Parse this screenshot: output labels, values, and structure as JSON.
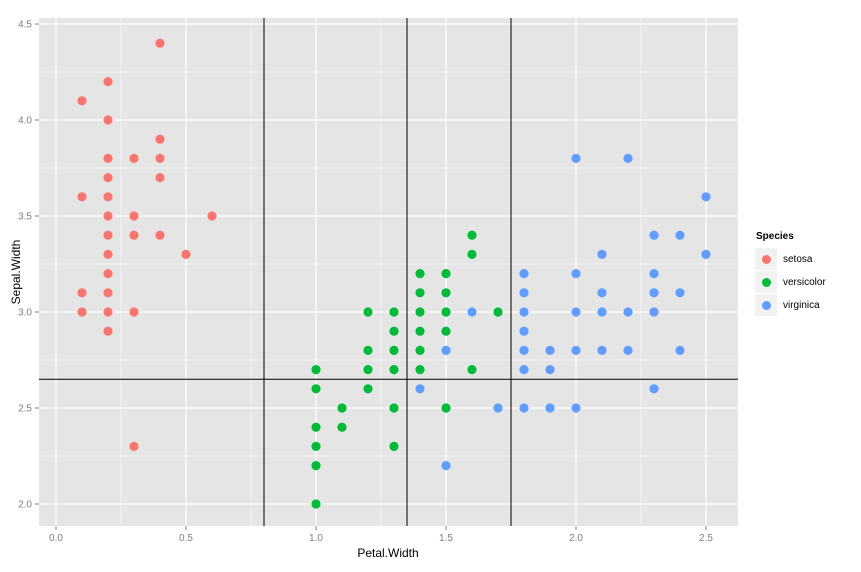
{
  "chart_data": {
    "type": "scatter",
    "title": "",
    "xlabel": "Petal.Width",
    "ylabel": "Sepal.Width",
    "xlim": [
      -0.065,
      2.62
    ],
    "ylim": [
      1.88,
      4.62
    ],
    "x_ticks": [
      0.0,
      0.5,
      1.0,
      1.5,
      2.0,
      2.5
    ],
    "x_tick_labels": [
      "0.0",
      "0.5",
      "1.0",
      "1.5",
      "2.0",
      "2.5"
    ],
    "y_ticks": [
      2.0,
      2.5,
      3.0,
      3.5,
      4.0,
      4.5
    ],
    "y_tick_labels": [
      "2.0",
      "2.5",
      "3.0",
      "3.5",
      "4.0",
      "4.5"
    ],
    "grid": true,
    "legend": {
      "title": "Species",
      "position": "right",
      "entries": [
        "setosa",
        "versicolor",
        "virginica"
      ]
    },
    "reference_lines": {
      "vertical": [
        0.8,
        1.35,
        1.75
      ],
      "horizontal": [
        2.65
      ]
    },
    "series": [
      {
        "name": "setosa",
        "color": "#F8766D",
        "points": [
          [
            0.4,
            4.4
          ],
          [
            0.2,
            4.2
          ],
          [
            0.1,
            4.1
          ],
          [
            0.2,
            4.0
          ],
          [
            0.4,
            3.9
          ],
          [
            0.2,
            3.8
          ],
          [
            0.3,
            3.8
          ],
          [
            0.4,
            3.8
          ],
          [
            0.2,
            3.7
          ],
          [
            0.4,
            3.7
          ],
          [
            0.1,
            3.6
          ],
          [
            0.2,
            3.6
          ],
          [
            0.2,
            3.5
          ],
          [
            0.3,
            3.5
          ],
          [
            0.6,
            3.5
          ],
          [
            0.2,
            3.4
          ],
          [
            0.3,
            3.4
          ],
          [
            0.4,
            3.4
          ],
          [
            0.5,
            3.3
          ],
          [
            0.2,
            3.3
          ],
          [
            0.2,
            3.2
          ],
          [
            0.1,
            3.1
          ],
          [
            0.2,
            3.1
          ],
          [
            0.1,
            3.0
          ],
          [
            0.2,
            3.0
          ],
          [
            0.3,
            3.0
          ],
          [
            0.2,
            2.9
          ],
          [
            0.3,
            2.3
          ]
        ]
      },
      {
        "name": "versicolor",
        "color": "#00BA38",
        "points": [
          [
            1.6,
            3.4
          ],
          [
            1.6,
            3.3
          ],
          [
            1.4,
            3.2
          ],
          [
            1.5,
            3.2
          ],
          [
            1.4,
            3.1
          ],
          [
            1.5,
            3.1
          ],
          [
            1.2,
            3.0
          ],
          [
            1.3,
            3.0
          ],
          [
            1.4,
            3.0
          ],
          [
            1.5,
            3.0
          ],
          [
            1.7,
            3.0
          ],
          [
            1.3,
            2.9
          ],
          [
            1.4,
            2.9
          ],
          [
            1.5,
            2.9
          ],
          [
            1.2,
            2.8
          ],
          [
            1.3,
            2.8
          ],
          [
            1.4,
            2.8
          ],
          [
            1.0,
            2.7
          ],
          [
            1.2,
            2.7
          ],
          [
            1.3,
            2.7
          ],
          [
            1.4,
            2.7
          ],
          [
            1.6,
            2.7
          ],
          [
            1.0,
            2.6
          ],
          [
            1.2,
            2.6
          ],
          [
            1.1,
            2.5
          ],
          [
            1.3,
            2.5
          ],
          [
            1.5,
            2.5
          ],
          [
            1.0,
            2.4
          ],
          [
            1.1,
            2.4
          ],
          [
            1.0,
            2.3
          ],
          [
            1.3,
            2.3
          ],
          [
            1.0,
            2.2
          ],
          [
            1.0,
            2.0
          ]
        ]
      },
      {
        "name": "virginica",
        "color": "#619CFF",
        "points": [
          [
            2.0,
            3.8
          ],
          [
            2.2,
            3.8
          ],
          [
            2.5,
            3.6
          ],
          [
            2.3,
            3.4
          ],
          [
            2.4,
            3.4
          ],
          [
            2.5,
            3.3
          ],
          [
            2.1,
            3.3
          ],
          [
            1.8,
            3.2
          ],
          [
            2.0,
            3.2
          ],
          [
            2.3,
            3.2
          ],
          [
            1.8,
            3.1
          ],
          [
            2.1,
            3.1
          ],
          [
            2.3,
            3.1
          ],
          [
            2.4,
            3.1
          ],
          [
            1.6,
            3.0
          ],
          [
            1.8,
            3.0
          ],
          [
            2.0,
            3.0
          ],
          [
            2.1,
            3.0
          ],
          [
            2.2,
            3.0
          ],
          [
            2.3,
            3.0
          ],
          [
            1.8,
            2.9
          ],
          [
            1.5,
            2.8
          ],
          [
            1.8,
            2.8
          ],
          [
            1.9,
            2.8
          ],
          [
            2.0,
            2.8
          ],
          [
            2.1,
            2.8
          ],
          [
            2.2,
            2.8
          ],
          [
            2.4,
            2.8
          ],
          [
            1.8,
            2.7
          ],
          [
            1.9,
            2.7
          ],
          [
            1.4,
            2.6
          ],
          [
            2.3,
            2.6
          ],
          [
            1.7,
            2.5
          ],
          [
            1.8,
            2.5
          ],
          [
            1.9,
            2.5
          ],
          [
            2.0,
            2.5
          ],
          [
            1.5,
            2.2
          ]
        ]
      }
    ]
  },
  "colors": {
    "panel_background": "#E5E5E5",
    "grid_major": "#FFFFFF",
    "grid_minor": "#F2F2F2",
    "reference_line": "#000000",
    "legend_key_background": "#F2F2F2"
  }
}
